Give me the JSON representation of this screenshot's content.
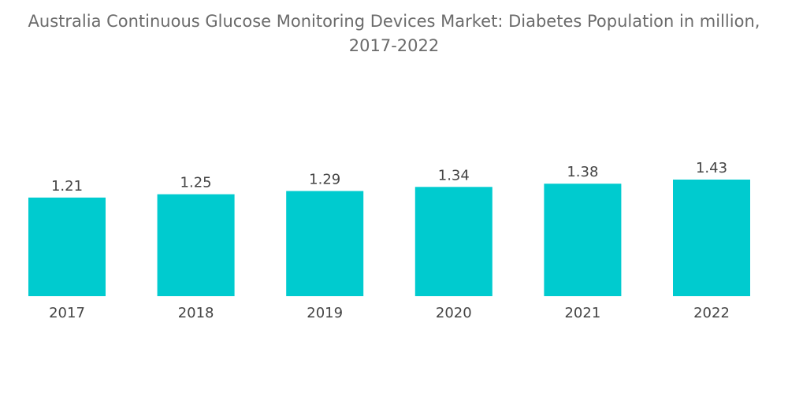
{
  "chart_data": {
    "type": "bar",
    "title_line1": "Australia Continuous Glucose Monitoring Devices Market: Diabetes Population in million,",
    "title_line2": "2017-2022",
    "categories": [
      "2017",
      "2018",
      "2019",
      "2020",
      "2021",
      "2022"
    ],
    "values": [
      1.21,
      1.25,
      1.29,
      1.34,
      1.38,
      1.43
    ],
    "data_labels": [
      "1.21",
      "1.25",
      "1.29",
      "1.34",
      "1.38",
      "1.43"
    ],
    "xlabel": "",
    "ylabel": "",
    "ylim": [
      0,
      1.43
    ],
    "grid": false,
    "legend": "none",
    "bar_color": "#00cbcf"
  }
}
